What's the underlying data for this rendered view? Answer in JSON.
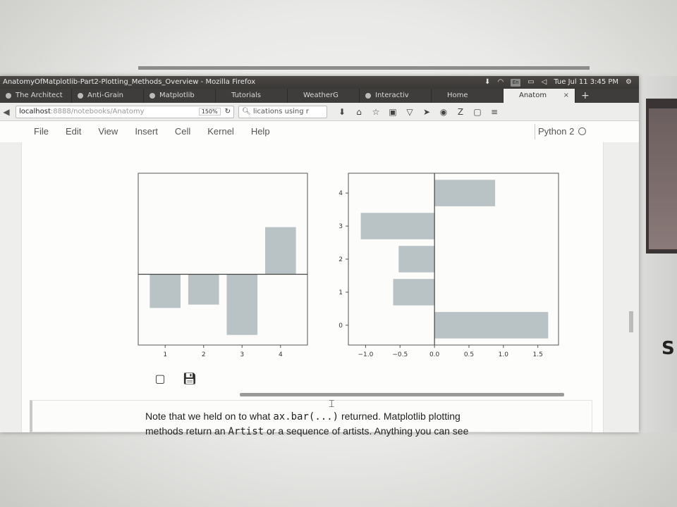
{
  "window": {
    "title": "AnatomyOfMatplotlib-Part2-Plotting_Methods_Overview - Mozilla Firefox",
    "tray": {
      "lang": "En",
      "clock": "Tue Jul 11 3:45 PM"
    }
  },
  "tabs": [
    {
      "label": "The Architect"
    },
    {
      "label": "Anti-Grain"
    },
    {
      "label": "Matplotlib"
    },
    {
      "label": "Tutorials"
    },
    {
      "label": "WeatherG"
    },
    {
      "label": "Interactiv"
    },
    {
      "label": "Home"
    },
    {
      "label": "Anatom",
      "active": true
    }
  ],
  "nav": {
    "url_host": "localhost",
    "url_rest": ":8888/notebooks/Anatomy",
    "zoom": "150%",
    "search": "lications using r"
  },
  "jupyter": {
    "menu": [
      "File",
      "Edit",
      "View",
      "Insert",
      "Cell",
      "Kernel",
      "Help"
    ],
    "kernel": "Python 2"
  },
  "chart_data": [
    {
      "type": "bar",
      "categories": [
        1,
        2,
        3,
        4
      ],
      "values": [
        -1.0,
        -0.9,
        -1.8,
        1.4
      ],
      "ylim": [
        -2.1,
        3.0
      ],
      "xlim": [
        0.3,
        4.7
      ],
      "xticks": [
        "1",
        "2",
        "3",
        "4"
      ],
      "axhline": 0,
      "color": "#b9c2c5"
    },
    {
      "type": "bar",
      "orientation": "horizontal",
      "categories": [
        0,
        1,
        2,
        3,
        4
      ],
      "values": [
        1.65,
        -0.6,
        -0.52,
        -1.07,
        0.88
      ],
      "xlim": [
        -1.25,
        1.8
      ],
      "ylim": [
        -0.6,
        4.6
      ],
      "xticks": [
        "−1.0",
        "−0.5",
        "0.0",
        "0.5",
        "1.0",
        "1.5"
      ],
      "yticks": [
        "0",
        "1",
        "2",
        "3",
        "4"
      ],
      "axvline": 0,
      "color": "#b9c2c5"
    }
  ],
  "markdown": {
    "line1_a": "Note that we held on to what ",
    "line1_code": "ax.bar(...)",
    "line1_b": " returned. Matplotlib plotting",
    "line2_a": "methods return an ",
    "line2_code": "Artist",
    "line2_b": " or a sequence of artists. Anything you can see"
  }
}
